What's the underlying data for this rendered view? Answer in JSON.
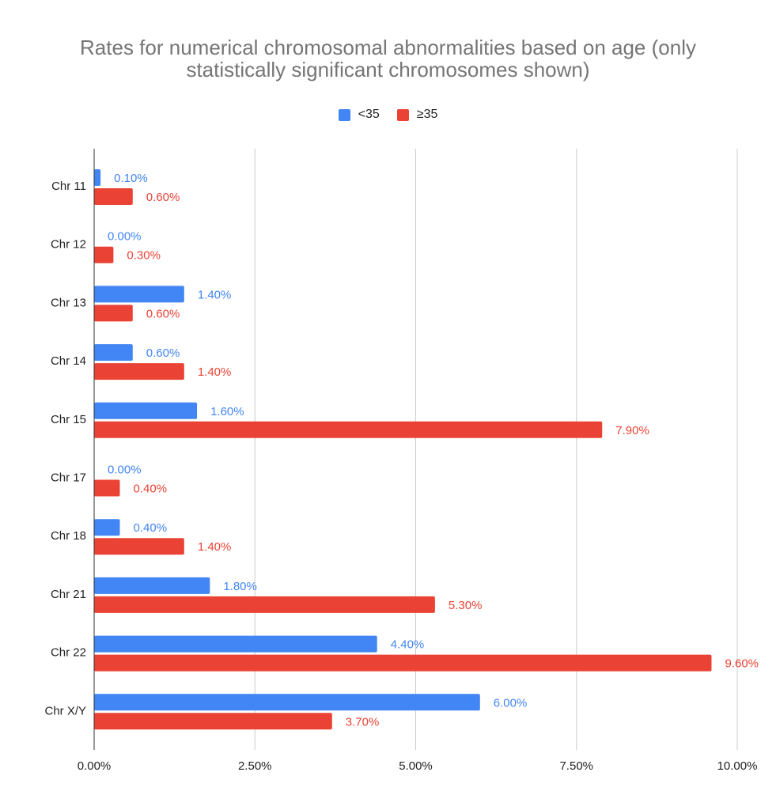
{
  "chart_data": {
    "type": "bar",
    "orientation": "horizontal",
    "title": "Rates for numerical chromosomal abnormalities based on age (only\nstatistically significant chromosomes shown)",
    "categories": [
      "Chr 11",
      "Chr 12",
      "Chr 13",
      "Chr 14",
      "Chr 15",
      "Chr 17",
      "Chr 18",
      "Chr 21",
      "Chr 22",
      "Chr X/Y"
    ],
    "series": [
      {
        "name": "<35",
        "color": "#4285f4",
        "values": [
          0.1,
          0.0,
          1.4,
          0.6,
          1.6,
          0.0,
          0.4,
          1.8,
          4.4,
          6.0
        ],
        "labels": [
          "0.10%",
          "0.00%",
          "1.40%",
          "0.60%",
          "1.60%",
          "0.00%",
          "0.40%",
          "1.80%",
          "4.40%",
          "6.00%"
        ]
      },
      {
        "name": "≥35",
        "color": "#ea4335",
        "values": [
          0.6,
          0.3,
          0.6,
          1.4,
          7.9,
          0.4,
          1.4,
          5.3,
          9.6,
          3.7
        ],
        "labels": [
          "0.60%",
          "0.30%",
          "0.60%",
          "1.40%",
          "7.90%",
          "0.40%",
          "1.40%",
          "5.30%",
          "9.60%",
          "3.70%"
        ]
      }
    ],
    "xlim": [
      0,
      10
    ],
    "xticks": [
      0,
      2.5,
      5,
      7.5,
      10
    ],
    "xtick_labels": [
      "0.00%",
      "2.50%",
      "5.00%",
      "7.50%",
      "10.00%"
    ],
    "grid": "vertical",
    "legend_position": "top"
  }
}
